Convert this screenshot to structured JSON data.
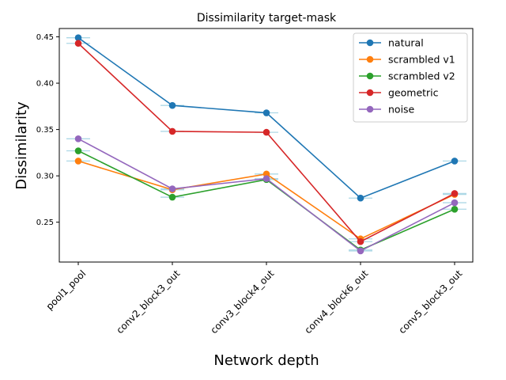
{
  "chart_data": {
    "type": "line",
    "title": "Dissimilarity target-mask",
    "xlabel": "Network depth",
    "ylabel": "Dissimilarity",
    "categories": [
      "pool1_pool",
      "conv2_block3_out",
      "conv3_block4_out",
      "conv4_block6_out",
      "conv5_block3_out"
    ],
    "ylim": [
      0.207,
      0.459
    ],
    "yticks": [
      0.25,
      0.3,
      0.35,
      0.4,
      0.45
    ],
    "ytick_labels": [
      "0.25",
      "0.30",
      "0.35",
      "0.40",
      "0.45"
    ],
    "grid": false,
    "legend_position": "upper right",
    "series": [
      {
        "name": "natural",
        "color": "#1f77b4",
        "values": [
          0.449,
          0.376,
          0.368,
          0.276,
          0.316
        ]
      },
      {
        "name": "scrambled v1",
        "color": "#ff7f0e",
        "values": [
          0.316,
          0.285,
          0.302,
          0.232,
          0.28
        ]
      },
      {
        "name": "scrambled v2",
        "color": "#2ca02c",
        "values": [
          0.327,
          0.277,
          0.296,
          0.22,
          0.264
        ]
      },
      {
        "name": "geometric",
        "color": "#d62728",
        "values": [
          0.443,
          0.348,
          0.347,
          0.229,
          0.281
        ]
      },
      {
        "name": "noise",
        "color": "#9467bd",
        "values": [
          0.34,
          0.286,
          0.297,
          0.219,
          0.271
        ]
      }
    ],
    "errorbar_color": "#add8e6"
  }
}
